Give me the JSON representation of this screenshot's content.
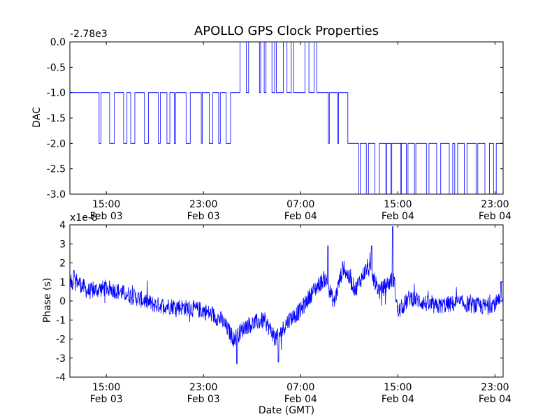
{
  "chart_data": [
    {
      "type": "line",
      "title": "APOLLO GPS Clock Properties",
      "ylabel": "DAC",
      "xlabel": "",
      "offset_label": "-2.78e3",
      "ylim": [
        -3.0,
        0.0
      ],
      "yticks": [
        "0.0",
        "-0.5",
        "-1.0",
        "-1.5",
        "-2.0",
        "-2.5",
        "-3.0"
      ],
      "xlim": [
        "Feb 03 12:00",
        "Feb 04 23:40"
      ],
      "xticks": [
        {
          "time": "15:00",
          "date": "Feb 03"
        },
        {
          "time": "23:00",
          "date": "Feb 03"
        },
        {
          "time": "07:00",
          "date": "Feb 04"
        },
        {
          "time": "15:00",
          "date": "Feb 04"
        },
        {
          "time": "23:00",
          "date": "Feb 04"
        }
      ],
      "series_color": "#0000ff",
      "grid": false,
      "series": [
        {
          "x_hours_note": "",
          "segments": [
            {
              "x": [
                "Feb 03 12:00",
                "Feb 03 13:40"
              ],
              "level": -1.0
            },
            {
              "x": [
                "Feb 03 13:40",
                "Feb 03 19:40"
              ],
              "level": -1.0,
              "dips_to": -2.0
            },
            {
              "x": [
                "Feb 03 19:40",
                "Feb 04 02:00"
              ],
              "level": -1.0,
              "dips_to": -2.0
            },
            {
              "x": [
                "Feb 04 02:00",
                "Feb 04 05:00"
              ],
              "level": 0.0,
              "dips_to": -1.0
            },
            {
              "x": [
                "Feb 04 05:00",
                "Feb 04 08:30"
              ],
              "level": -1.0,
              "spikes_to": 0.0
            },
            {
              "x": [
                "Feb 04 08:30",
                "Feb 04 11:00"
              ],
              "level": -1.0,
              "dips_to": -2.0
            },
            {
              "x": [
                "Feb 04 11:00",
                "Feb 04 14:30"
              ],
              "level": -2.0,
              "dips_to": -3.0
            },
            {
              "x": [
                "Feb 04 14:30",
                "Feb 04 23:40"
              ],
              "level": -2.0,
              "dips_to": -3.0
            }
          ]
        }
      ]
    },
    {
      "type": "line",
      "title": "",
      "ylabel": "Phase (s)",
      "xlabel": "Date (GMT)",
      "offset_label": "x1e-8",
      "ylim": [
        -4,
        4
      ],
      "yticks": [
        "4",
        "3",
        "2",
        "1",
        "0",
        "-1",
        "-2",
        "-3",
        "-4"
      ],
      "xlim": [
        "Feb 03 12:00",
        "Feb 04 23:40"
      ],
      "xticks": [
        {
          "time": "15:00",
          "date": "Feb 03"
        },
        {
          "time": "23:00",
          "date": "Feb 03"
        },
        {
          "time": "07:00",
          "date": "Feb 04"
        },
        {
          "time": "15:00",
          "date": "Feb 04"
        },
        {
          "time": "23:00",
          "date": "Feb 04"
        }
      ],
      "series_color": "#0000ff",
      "grid": false,
      "series": [
        {
          "trend": [
            {
              "t": "Feb 03 12:00",
              "y": 0.9
            },
            {
              "t": "Feb 03 12:30",
              "y": 1.1
            },
            {
              "t": "Feb 03 13:30",
              "y": 0.5
            },
            {
              "t": "Feb 03 15:00",
              "y": 0.7
            },
            {
              "t": "Feb 03 17:00",
              "y": 0.3
            },
            {
              "t": "Feb 03 19:00",
              "y": -0.2
            },
            {
              "t": "Feb 03 21:00",
              "y": -0.3
            },
            {
              "t": "Feb 03 23:00",
              "y": -0.5
            },
            {
              "t": "Feb 04 00:30",
              "y": -1.0
            },
            {
              "t": "Feb 04 01:30",
              "y": -2.0
            },
            {
              "t": "Feb 04 02:30",
              "y": -1.3
            },
            {
              "t": "Feb 04 04:00",
              "y": -1.0
            },
            {
              "t": "Feb 04 05:00",
              "y": -2.0
            },
            {
              "t": "Feb 04 06:00",
              "y": -1.0
            },
            {
              "t": "Feb 04 07:00",
              "y": -0.5
            },
            {
              "t": "Feb 04 08:00",
              "y": 0.5
            },
            {
              "t": "Feb 04 09:00",
              "y": 1.2
            },
            {
              "t": "Feb 04 09:45",
              "y": -0.1
            },
            {
              "t": "Feb 04 10:30",
              "y": 1.8
            },
            {
              "t": "Feb 04 11:30",
              "y": 0.6
            },
            {
              "t": "Feb 04 12:30",
              "y": 1.8
            },
            {
              "t": "Feb 04 13:30",
              "y": 0.5
            },
            {
              "t": "Feb 04 14:40",
              "y": 1.2
            },
            {
              "t": "Feb 04 15:00",
              "y": -0.6
            },
            {
              "t": "Feb 04 16:00",
              "y": 0.2
            },
            {
              "t": "Feb 04 18:00",
              "y": -0.3
            },
            {
              "t": "Feb 04 20:00",
              "y": -0.1
            },
            {
              "t": "Feb 04 22:00",
              "y": -0.3
            },
            {
              "t": "Feb 04 23:40",
              "y": 0.0
            }
          ],
          "peaks": [
            {
              "t": "Feb 03 12:20",
              "y": 1.6
            },
            {
              "t": "Feb 04 01:45",
              "y": -3.3
            },
            {
              "t": "Feb 04 05:10",
              "y": -3.2
            },
            {
              "t": "Feb 04 09:15",
              "y": 2.9
            },
            {
              "t": "Feb 04 12:50",
              "y": 2.9
            },
            {
              "t": "Feb 04 14:35",
              "y": 3.9
            },
            {
              "t": "Feb 04 23:30",
              "y": 1.0
            }
          ]
        }
      ]
    }
  ]
}
